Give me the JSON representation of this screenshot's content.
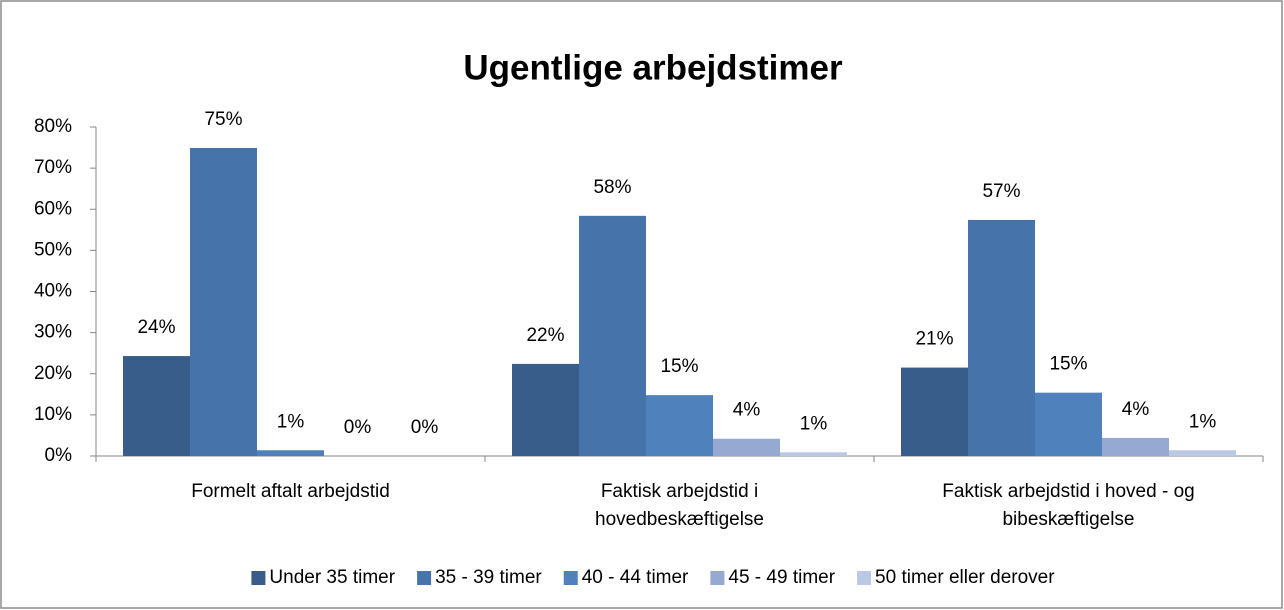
{
  "chart_data": {
    "type": "bar",
    "title": "Ugentlige arbejdstimer",
    "categories": [
      "Formelt aftalt arbejdstid",
      "Faktisk arbejdstid i hovedbeskæftigelse",
      "Faktisk arbejdstid i hoved - og bibeskæftigelse"
    ],
    "series": [
      {
        "name": "Under 35 timer",
        "color": "#385d8a",
        "values": [
          24.3,
          22.4,
          21.5
        ],
        "value_labels": [
          "24%",
          "22%",
          "21%"
        ]
      },
      {
        "name": "35 - 39 timer",
        "color": "#4674aa",
        "values": [
          74.9,
          58.4,
          57.4
        ],
        "value_labels": [
          "75%",
          "58%",
          "57%"
        ]
      },
      {
        "name": "40 - 44 timer",
        "color": "#4f81bd",
        "values": [
          1.4,
          14.8,
          15.4
        ],
        "value_labels": [
          "1%",
          "15%",
          "15%"
        ]
      },
      {
        "name": "45 - 49 timer",
        "color": "#95a9d2",
        "values": [
          0,
          4.2,
          4.4
        ],
        "value_labels": [
          "0%",
          "4%",
          "4%"
        ]
      },
      {
        "name": "50 timer eller derover",
        "color": "#b9c9e5",
        "values": [
          0,
          0.9,
          1.4
        ],
        "value_labels": [
          "0%",
          "1%",
          "1%"
        ]
      }
    ],
    "ylim": [
      0,
      80
    ],
    "yticks": [
      {
        "value": 0,
        "label": "0%"
      },
      {
        "value": 10,
        "label": "10%"
      },
      {
        "value": 20,
        "label": "20%"
      },
      {
        "value": 30,
        "label": "30%"
      },
      {
        "value": 40,
        "label": "40%"
      },
      {
        "value": 50,
        "label": "50%"
      },
      {
        "value": 60,
        "label": "60%"
      },
      {
        "value": 70,
        "label": "70%"
      },
      {
        "value": 80,
        "label": "80%"
      }
    ],
    "grid": false,
    "legend": "bottom"
  }
}
